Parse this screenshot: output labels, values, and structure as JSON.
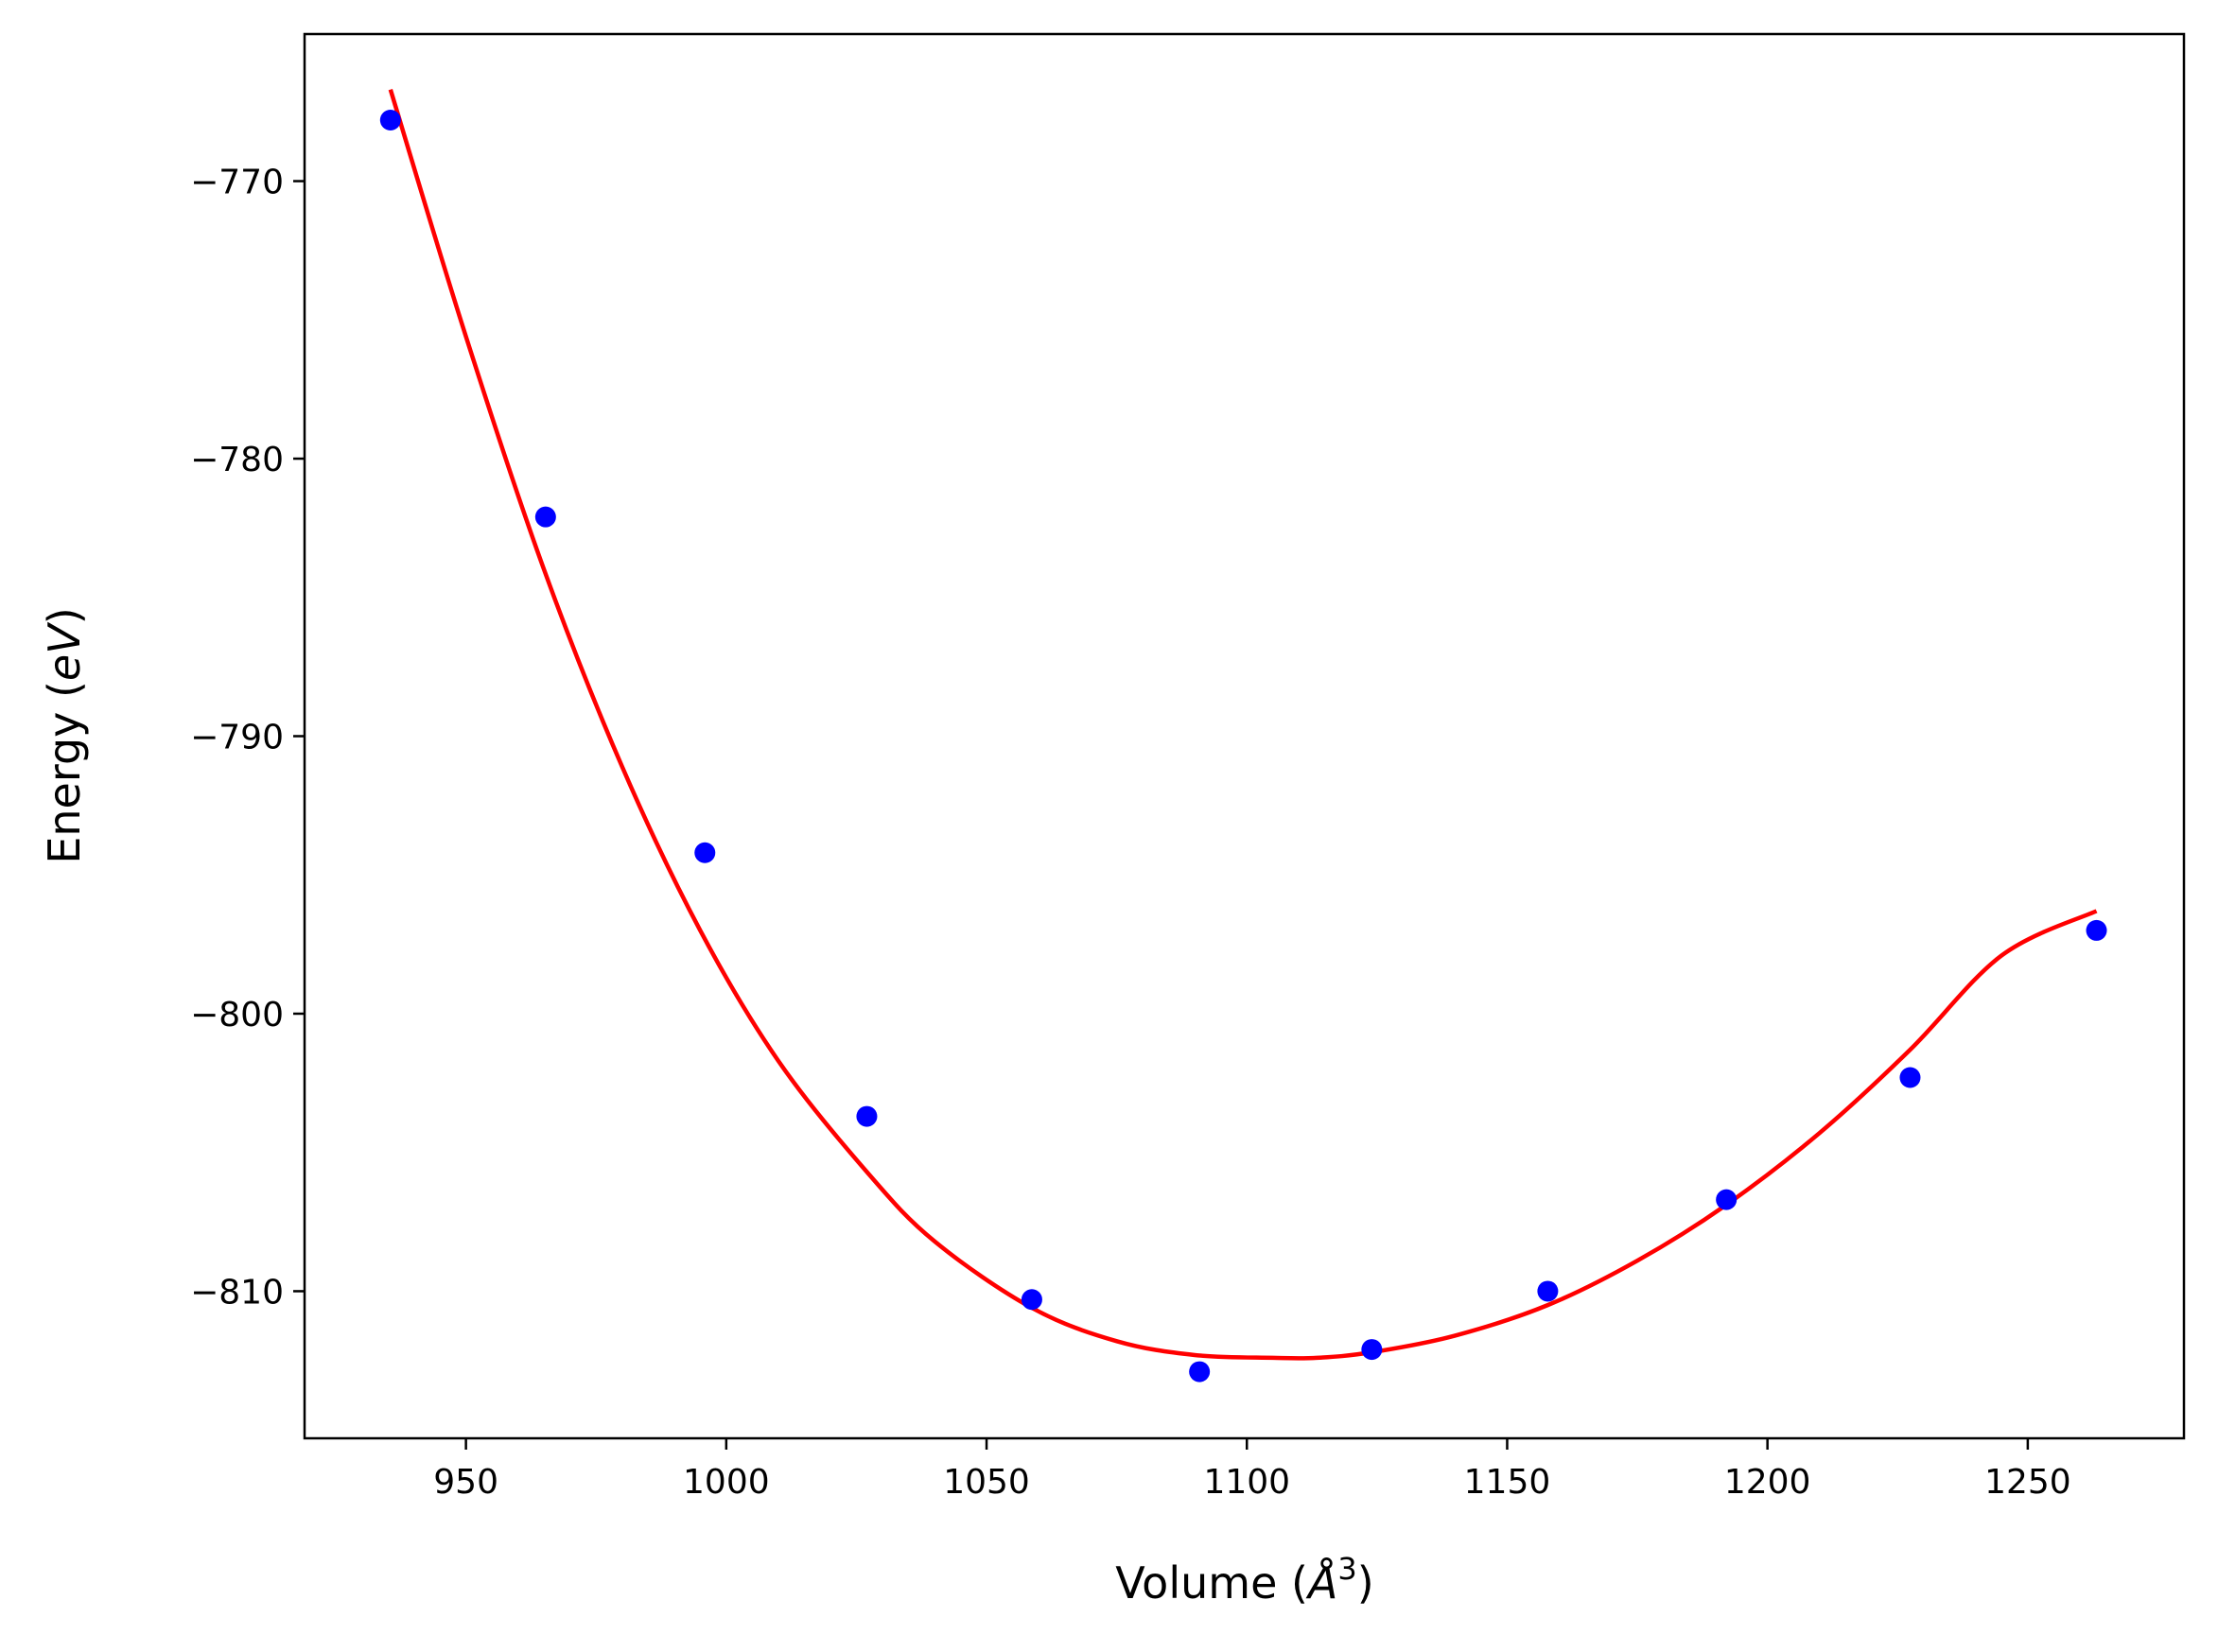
{
  "chart_data": {
    "type": "scatter",
    "xlabel_prefix": "Volume (",
    "xlabel_unit": "Å",
    "xlabel_exp": "3",
    "xlabel_suffix": ")",
    "ylabel_prefix": "Energy (",
    "ylabel_unit": "eV",
    "ylabel_suffix": ")",
    "xlim": [
      919,
      1280
    ],
    "ylim": [
      -815.3,
      -764.7
    ],
    "xticks": [
      950,
      1000,
      1050,
      1100,
      1150,
      1200,
      1250
    ],
    "xtick_labels": [
      "950",
      "1000",
      "1050",
      "1100",
      "1150",
      "1200",
      "1250"
    ],
    "yticks": [
      -770,
      -780,
      -790,
      -800,
      -810
    ],
    "ytick_labels": [
      "−770",
      "−780",
      "−790",
      "−800",
      "−810"
    ],
    "grid": false,
    "series": [
      {
        "kind": "points",
        "color": "#0000ff",
        "x": [
          935.5,
          965.3,
          995.9,
          1027.0,
          1058.7,
          1090.9,
          1124.0,
          1157.8,
          1192.1,
          1227.4,
          1263.2
        ],
        "y": [
          -767.8,
          -782.1,
          -794.2,
          -803.7,
          -810.3,
          -812.9,
          -812.1,
          -810.0,
          -806.7,
          -802.3,
          -797.0
        ]
      },
      {
        "kind": "fit-curve",
        "color": "#ff0000",
        "x": [
          935.5,
          950,
          965,
          980,
          995,
          1010,
          1027,
          1040,
          1058.7,
          1075,
          1090,
          1105,
          1113.5,
          1124,
          1140,
          1157.8,
          1175,
          1192,
          1210,
          1227.4,
          1245,
          1263.2
        ],
        "y": [
          -766.7,
          -775.6,
          -784.0,
          -791.1,
          -797.0,
          -801.7,
          -805.7,
          -808.2,
          -810.6,
          -811.8,
          -812.3,
          -812.4,
          -812.4,
          -812.2,
          -811.6,
          -810.5,
          -808.9,
          -806.9,
          -804.3,
          -801.3,
          -797.9,
          -796.3
        ]
      }
    ]
  }
}
